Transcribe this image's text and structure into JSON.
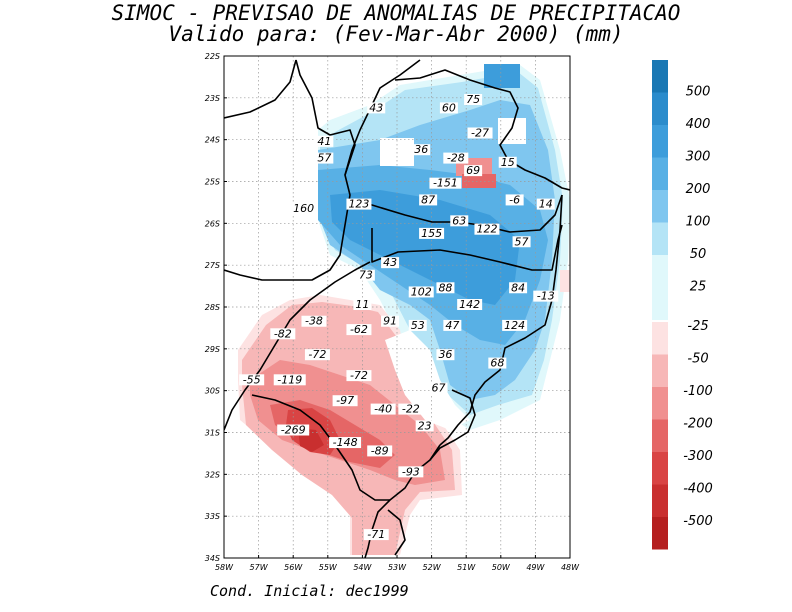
{
  "title_line1": "SIMOC - PREVISAO DE ANOMALIAS DE PRECIPITACAO",
  "title_line2": "Valido para: (Fev-Mar-Abr 2000) (mm)",
  "footer": "Cond. Inicial: dec1999",
  "axes": {
    "lat_ticks": [
      "22S",
      "23S",
      "24S",
      "25S",
      "26S",
      "27S",
      "28S",
      "29S",
      "30S",
      "31S",
      "32S",
      "33S",
      "34S"
    ],
    "lon_ticks": [
      "58W",
      "57W",
      "56W",
      "55W",
      "54W",
      "53W",
      "52W",
      "51W",
      "50W",
      "49W",
      "48W"
    ]
  },
  "colorbar": {
    "positive_labels": [
      "500",
      "400",
      "300",
      "200",
      "100",
      "50",
      "25"
    ],
    "negative_labels": [
      "-25",
      "-50",
      "-100",
      "-200",
      "-300",
      "-400",
      "-500"
    ],
    "positive_colors": [
      "#1a78b4",
      "#2b8ccc",
      "#3d9ddb",
      "#58b0e5",
      "#7fc6ef",
      "#b4e4f6",
      "#e0f8fb"
    ],
    "negative_colors": [
      "#fde2e2",
      "#f7b7b7",
      "#f09090",
      "#e56666",
      "#d94444",
      "#c92f2f",
      "#b51f1f"
    ]
  },
  "map_data": {
    "units": "mm",
    "grid_on": true,
    "lat_range": [
      -34,
      -22
    ],
    "lon_range": [
      -58,
      -48
    ],
    "labels": [
      {
        "text": "75",
        "lon": -50.8,
        "lat": -23.1
      },
      {
        "text": "60",
        "lon": -51.5,
        "lat": -23.3
      },
      {
        "text": "43",
        "lon": -53.6,
        "lat": -23.3
      },
      {
        "text": "-27",
        "lon": -50.6,
        "lat": -23.9
      },
      {
        "text": "41",
        "lon": -55.1,
        "lat": -24.1
      },
      {
        "text": "36",
        "lon": -52.3,
        "lat": -24.3
      },
      {
        "text": "57",
        "lon": -55.1,
        "lat": -24.5
      },
      {
        "text": "-28",
        "lon": -51.3,
        "lat": -24.5
      },
      {
        "text": "15",
        "lon": -49.8,
        "lat": -24.6
      },
      {
        "text": "69",
        "lon": -50.8,
        "lat": -24.8
      },
      {
        "text": "-151",
        "lon": -51.6,
        "lat": -25.1
      },
      {
        "text": "87",
        "lon": -52.1,
        "lat": -25.5
      },
      {
        "text": "-6",
        "lon": -49.6,
        "lat": -25.5
      },
      {
        "text": "14",
        "lon": -48.7,
        "lat": -25.6
      },
      {
        "text": "160",
        "lon": -55.7,
        "lat": -25.7
      },
      {
        "text": "123",
        "lon": -54.1,
        "lat": -25.6
      },
      {
        "text": "63",
        "lon": -51.2,
        "lat": -26.0
      },
      {
        "text": "122",
        "lon": -50.4,
        "lat": -26.2
      },
      {
        "text": "155",
        "lon": -52.0,
        "lat": -26.3
      },
      {
        "text": "57",
        "lon": -49.4,
        "lat": -26.5
      },
      {
        "text": "43",
        "lon": -53.2,
        "lat": -27.0
      },
      {
        "text": "73",
        "lon": -53.9,
        "lat": -27.3
      },
      {
        "text": "84",
        "lon": -49.5,
        "lat": -27.6
      },
      {
        "text": "-13",
        "lon": -48.7,
        "lat": -27.8
      },
      {
        "text": "102",
        "lon": -52.3,
        "lat": -27.7
      },
      {
        "text": "88",
        "lon": -51.6,
        "lat": -27.6
      },
      {
        "text": "142",
        "lon": -50.9,
        "lat": -28.0
      },
      {
        "text": "11",
        "lon": -54.0,
        "lat": -28.0
      },
      {
        "text": "-38",
        "lon": -55.4,
        "lat": -28.4
      },
      {
        "text": "91",
        "lon": -53.2,
        "lat": -28.4
      },
      {
        "text": "53",
        "lon": -52.4,
        "lat": -28.5
      },
      {
        "text": "47",
        "lon": -51.4,
        "lat": -28.5
      },
      {
        "text": "124",
        "lon": -49.6,
        "lat": -28.5
      },
      {
        "text": "-82",
        "lon": -56.3,
        "lat": -28.7
      },
      {
        "text": "-62",
        "lon": -54.1,
        "lat": -28.6
      },
      {
        "text": "-72",
        "lon": -55.3,
        "lat": -29.2
      },
      {
        "text": "36",
        "lon": -51.6,
        "lat": -29.2
      },
      {
        "text": "68",
        "lon": -50.1,
        "lat": -29.4
      },
      {
        "text": "-72",
        "lon": -54.1,
        "lat": -29.7
      },
      {
        "text": "-55",
        "lon": -57.2,
        "lat": -29.8
      },
      {
        "text": "-119",
        "lon": -56.1,
        "lat": -29.8
      },
      {
        "text": "67",
        "lon": -51.8,
        "lat": -30.0
      },
      {
        "text": "-97",
        "lon": -54.5,
        "lat": -30.3
      },
      {
        "text": "-40",
        "lon": -53.4,
        "lat": -30.5
      },
      {
        "text": "-22",
        "lon": -52.6,
        "lat": -30.5
      },
      {
        "text": "23",
        "lon": -52.2,
        "lat": -30.9
      },
      {
        "text": "-269",
        "lon": -56.0,
        "lat": -31.0
      },
      {
        "text": "-148",
        "lon": -54.5,
        "lat": -31.3
      },
      {
        "text": "-89",
        "lon": -53.5,
        "lat": -31.5
      },
      {
        "text": "-93",
        "lon": -52.6,
        "lat": -32.0
      },
      {
        "text": "-71",
        "lon": -53.6,
        "lat": -33.5
      }
    ]
  }
}
